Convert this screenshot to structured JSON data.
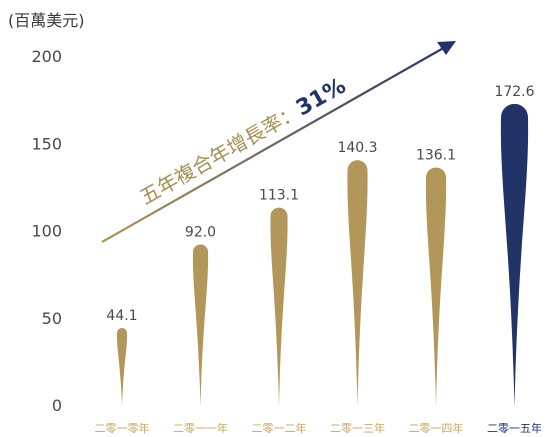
{
  "chart_data": {
    "type": "bar",
    "ylabel": "(百萬美元)",
    "ylim": [
      0,
      200
    ],
    "yticks": [
      0,
      50,
      100,
      150,
      200
    ],
    "categories": [
      "二零一零年",
      "二零一一年",
      "二零一二年",
      "二零一三年",
      "二零一四年",
      "二零一五年"
    ],
    "values": [
      44.1,
      92.0,
      113.1,
      140.3,
      136.1,
      172.6
    ],
    "data_labels": [
      "44.1",
      "92.0",
      "113.1",
      "140.3",
      "136.1",
      "172.6"
    ],
    "annotation": {
      "text": "五年複合年增長率：",
      "value": "31%"
    },
    "grid": false,
    "colors": {
      "gold": "#b3975a",
      "navy": "#223467",
      "highlight_index": 5
    }
  }
}
